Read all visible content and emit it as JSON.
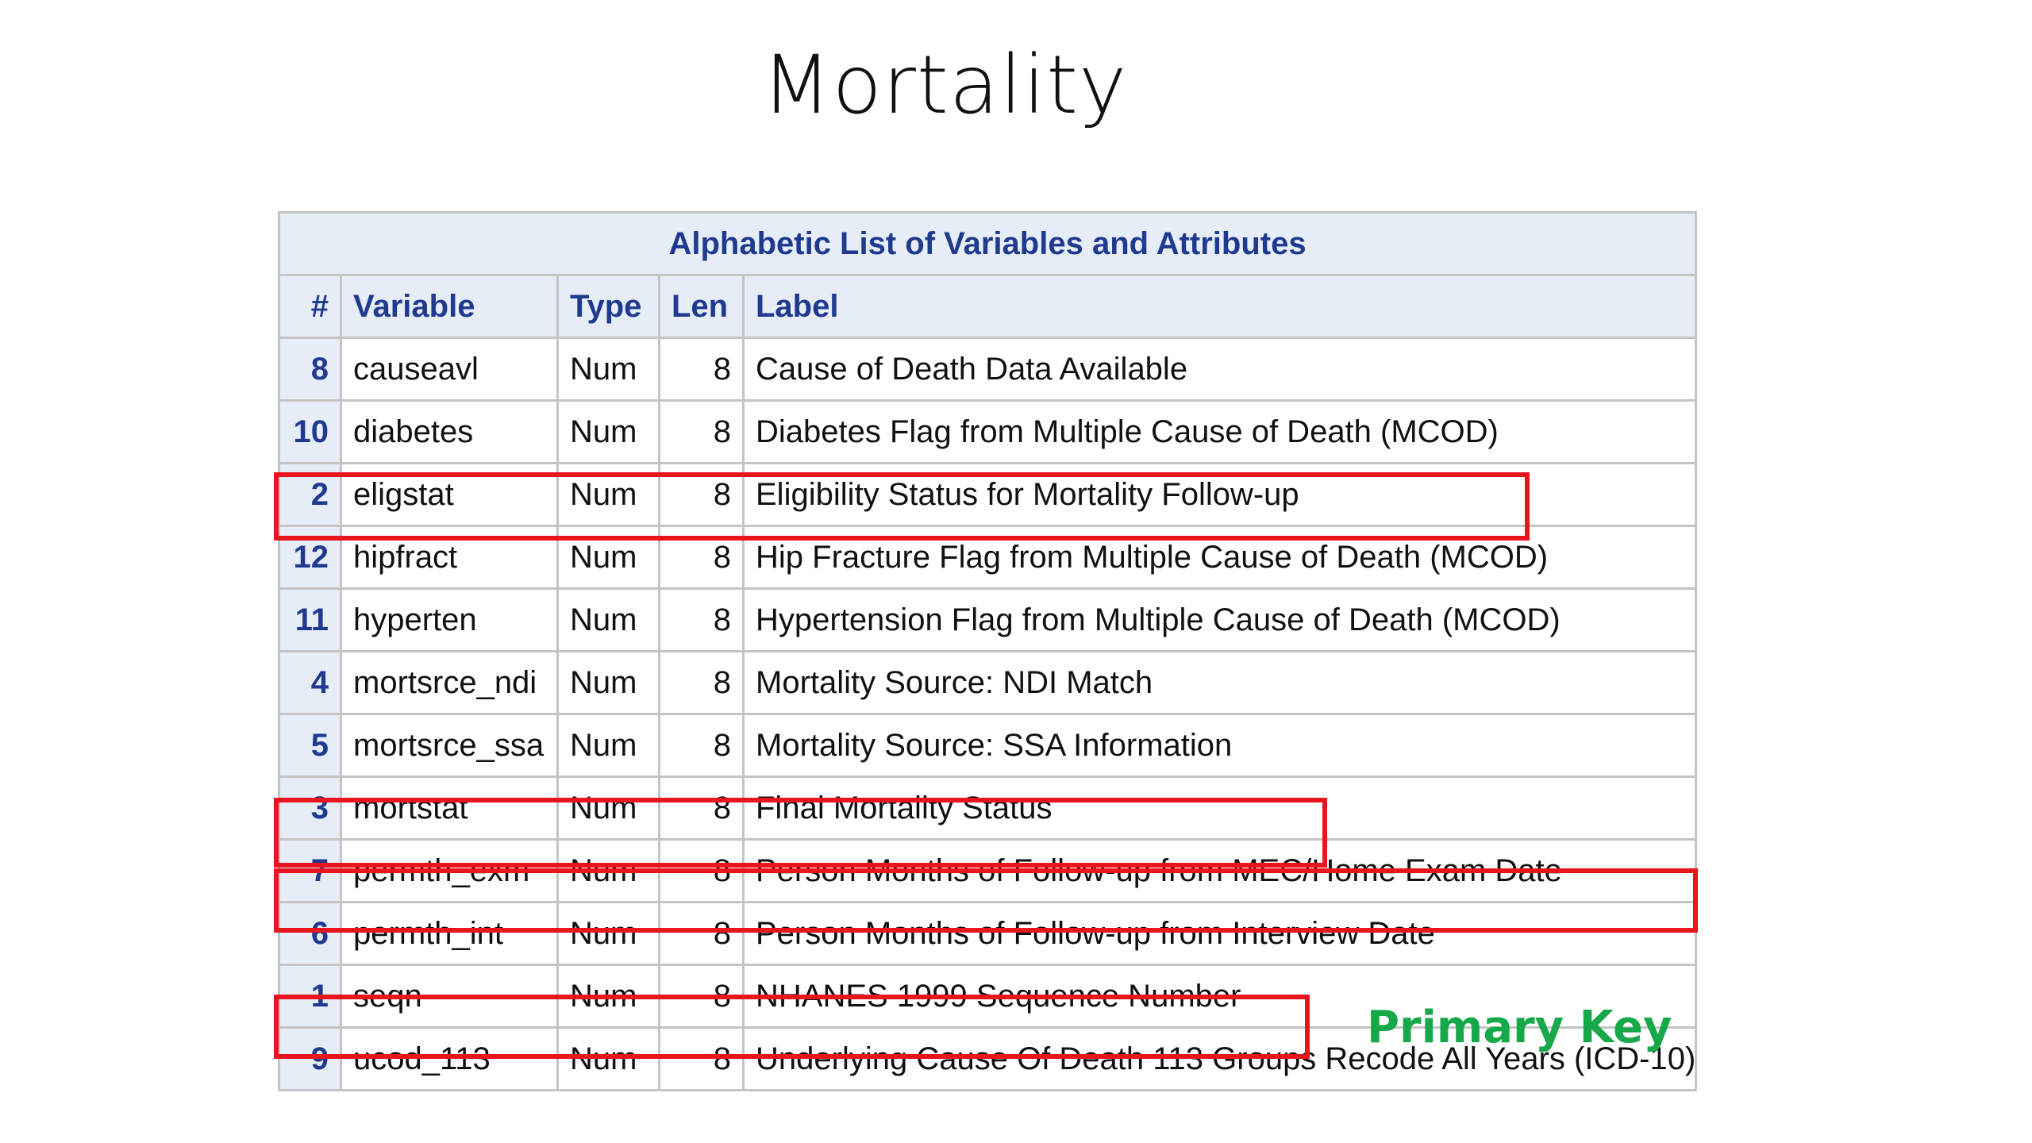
{
  "title": "Mortality",
  "table": {
    "caption": "Alphabetic List of Variables and Attributes",
    "headers": [
      "#",
      "Variable",
      "Type",
      "Len",
      "Label"
    ],
    "rows": [
      {
        "num": "8",
        "variable": "causeavl",
        "type": "Num",
        "len": "8",
        "label": "Cause of Death Data Available"
      },
      {
        "num": "10",
        "variable": "diabetes",
        "type": "Num",
        "len": "8",
        "label": "Diabetes Flag from Multiple Cause of Death (MCOD)"
      },
      {
        "num": "2",
        "variable": "eligstat",
        "type": "Num",
        "len": "8",
        "label": "Eligibility Status for Mortality Follow-up"
      },
      {
        "num": "12",
        "variable": "hipfract",
        "type": "Num",
        "len": "8",
        "label": "Hip Fracture Flag from Multiple Cause of Death (MCOD)"
      },
      {
        "num": "11",
        "variable": "hyperten",
        "type": "Num",
        "len": "8",
        "label": "Hypertension Flag from Multiple Cause of Death (MCOD)"
      },
      {
        "num": "4",
        "variable": "mortsrce_ndi",
        "type": "Num",
        "len": "8",
        "label": "Mortality Source: NDI Match"
      },
      {
        "num": "5",
        "variable": "mortsrce_ssa",
        "type": "Num",
        "len": "8",
        "label": "Mortality Source: SSA Information"
      },
      {
        "num": "3",
        "variable": "mortstat",
        "type": "Num",
        "len": "8",
        "label": "Final Mortality Status"
      },
      {
        "num": "7",
        "variable": "permth_exm",
        "type": "Num",
        "len": "8",
        "label": "Person Months of Follow-up from MEC/Home Exam Date"
      },
      {
        "num": "6",
        "variable": "permth_int",
        "type": "Num",
        "len": "8",
        "label": "Person Months of Follow-up from Interview Date"
      },
      {
        "num": "1",
        "variable": "seqn",
        "type": "Num",
        "len": "8",
        "label": "NHANES 1999 Sequence Number"
      },
      {
        "num": "9",
        "variable": "ucod_113",
        "type": "Num",
        "len": "8",
        "label": "Underlying Cause Of Death 113 Groups Recode All Years (ICD-10)"
      }
    ]
  },
  "annotation": "Primary Key",
  "colors": {
    "header_text": "#1f3a8f",
    "header_bg": "#e6edf7",
    "highlight_box": "#e8141e",
    "annotation": "#17a84a"
  }
}
